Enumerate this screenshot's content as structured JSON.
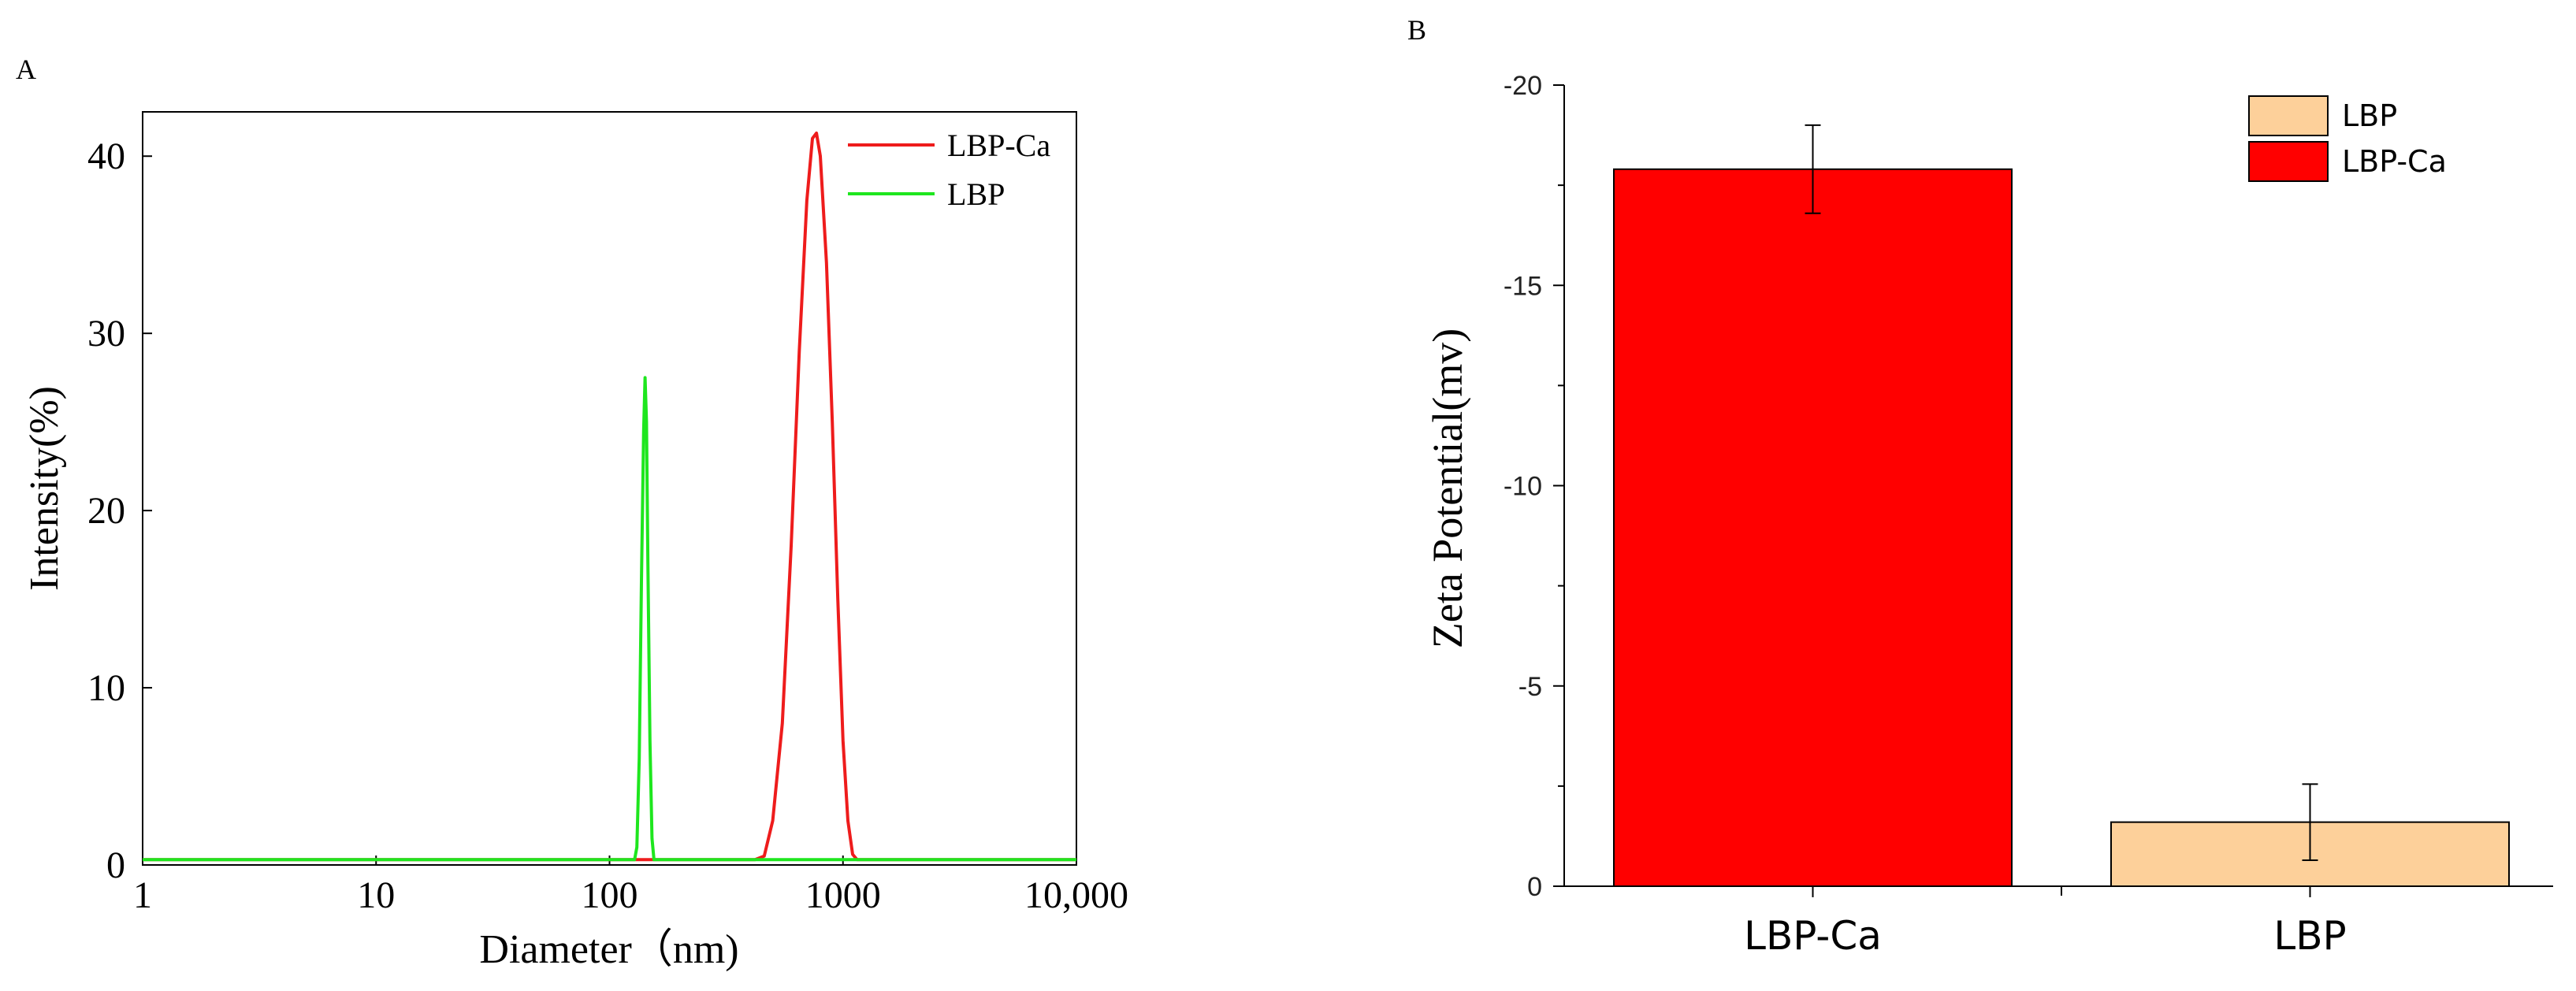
{
  "chart_data": [
    {
      "panel": "A",
      "type": "line",
      "xlabel": "Diameter（nm)",
      "ylabel": "Intensity(%)",
      "xscale": "log",
      "xlim": [
        1,
        10000
      ],
      "ylim": [
        0,
        42.5
      ],
      "xticks": [
        1,
        10,
        100,
        1000,
        10000
      ],
      "xtick_labels": [
        "1",
        "10",
        "100",
        "1000",
        "10,000"
      ],
      "yticks": [
        0,
        10,
        20,
        30,
        40
      ],
      "ytick_labels": [
        "0",
        "10",
        "20",
        "30",
        "40"
      ],
      "legend_position": "top-right",
      "series": [
        {
          "name": "LBP-Ca",
          "color": "#ee1c1c",
          "points": [
            [
              1,
              0.3
            ],
            [
              420,
              0.3
            ],
            [
              460,
              0.5
            ],
            [
              500,
              2.5
            ],
            [
              550,
              8
            ],
            [
              600,
              18
            ],
            [
              650,
              29
            ],
            [
              700,
              37.5
            ],
            [
              740,
              41
            ],
            [
              770,
              41.3
            ],
            [
              800,
              40
            ],
            [
              850,
              34
            ],
            [
              900,
              25
            ],
            [
              950,
              15
            ],
            [
              1000,
              7
            ],
            [
              1050,
              2.5
            ],
            [
              1100,
              0.6
            ],
            [
              1150,
              0.3
            ],
            [
              10000,
              0.3
            ]
          ]
        },
        {
          "name": "LBP",
          "color": "#1ee61e",
          "points": [
            [
              1,
              0.3
            ],
            [
              128,
              0.3
            ],
            [
              131,
              1
            ],
            [
              134,
              6
            ],
            [
              137,
              16
            ],
            [
              140,
              24.5
            ],
            [
              142,
              27.5
            ],
            [
              144,
              25
            ],
            [
              146,
              17
            ],
            [
              149,
              7
            ],
            [
              152,
              1.5
            ],
            [
              155,
              0.3
            ],
            [
              10000,
              0.3
            ]
          ]
        }
      ]
    },
    {
      "panel": "B",
      "type": "bar",
      "ylabel": "Zeta Potential(mv)",
      "categories": [
        "LBP-Ca",
        "LBP"
      ],
      "values": [
        -17.9,
        -1.6
      ],
      "errors": [
        1.1,
        0.95
      ],
      "colors": [
        "#ff0000",
        "#fdd09a"
      ],
      "yticks": [
        0,
        -5,
        -10,
        -15,
        -20
      ],
      "ytick_labels": [
        "0",
        "-5",
        "-10",
        "-15",
        "-20"
      ],
      "ylim": [
        0,
        -20
      ],
      "y_inverted": true,
      "legend_position": "top-right",
      "legend": [
        {
          "name": "LBP",
          "color": "#fdd09a"
        },
        {
          "name": "LBP-Ca",
          "color": "#ff0000"
        }
      ]
    }
  ]
}
